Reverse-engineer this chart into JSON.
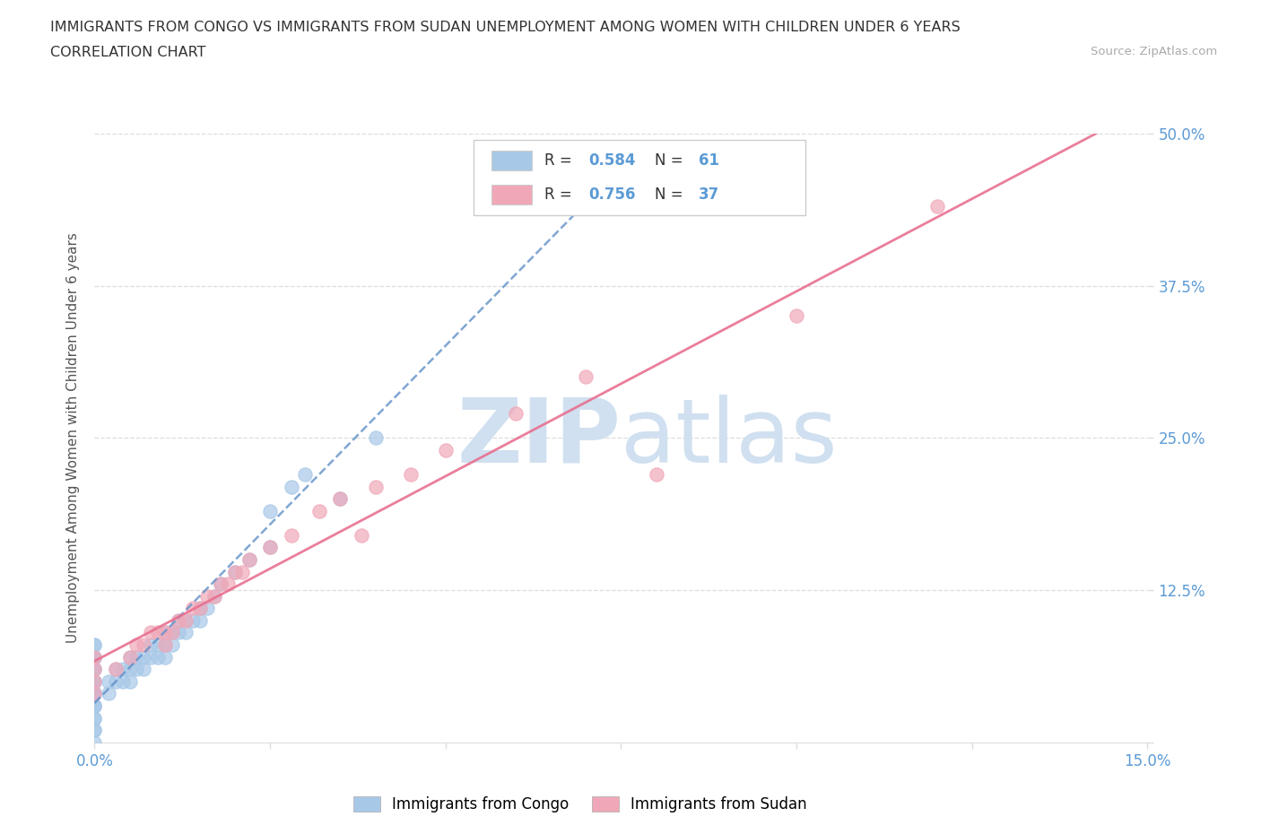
{
  "title_line1": "IMMIGRANTS FROM CONGO VS IMMIGRANTS FROM SUDAN UNEMPLOYMENT AMONG WOMEN WITH CHILDREN UNDER 6 YEARS",
  "title_line2": "CORRELATION CHART",
  "source_text": "Source: ZipAtlas.com",
  "ylabel": "Unemployment Among Women with Children Under 6 years",
  "xlim": [
    0.0,
    0.15
  ],
  "ylim": [
    0.0,
    0.5
  ],
  "xticks": [
    0.0,
    0.025,
    0.05,
    0.075,
    0.1,
    0.125,
    0.15
  ],
  "xticklabels": [
    "0.0%",
    "",
    "",
    "",
    "",
    "",
    "15.0%"
  ],
  "yticks": [
    0.0,
    0.125,
    0.25,
    0.375,
    0.5
  ],
  "yticklabels": [
    "",
    "12.5%",
    "25.0%",
    "37.5%",
    "50.0%"
  ],
  "congo_color": "#A8C8E8",
  "sudan_color": "#F0A8B8",
  "congo_line_color": "#6090C8",
  "sudan_line_color": "#E87090",
  "congo_R": 0.584,
  "congo_N": 61,
  "sudan_R": 0.756,
  "sudan_N": 37,
  "watermark_zip": "ZIP",
  "watermark_atlas": "atlas",
  "watermark_color": "#D0E0F0",
  "grid_color": "#DDDDDD",
  "tick_color": "#5B9BD5",
  "legend_text_color": "#333333",
  "congo_scatter_x": [
    0.0,
    0.0,
    0.0,
    0.0,
    0.0,
    0.0,
    0.0,
    0.0,
    0.0,
    0.0,
    0.0,
    0.0,
    0.0,
    0.0,
    0.0,
    0.0,
    0.0,
    0.0,
    0.0,
    0.0,
    0.002,
    0.002,
    0.003,
    0.003,
    0.004,
    0.004,
    0.005,
    0.005,
    0.005,
    0.006,
    0.006,
    0.007,
    0.007,
    0.008,
    0.008,
    0.009,
    0.009,
    0.01,
    0.01,
    0.01,
    0.011,
    0.011,
    0.012,
    0.012,
    0.013,
    0.013,
    0.014,
    0.015,
    0.015,
    0.016,
    0.017,
    0.018,
    0.02,
    0.022,
    0.025,
    0.025,
    0.028,
    0.03,
    0.035,
    0.04,
    0.055
  ],
  "congo_scatter_y": [
    0.0,
    0.01,
    0.01,
    0.02,
    0.02,
    0.03,
    0.03,
    0.03,
    0.04,
    0.04,
    0.04,
    0.05,
    0.05,
    0.05,
    0.06,
    0.06,
    0.07,
    0.07,
    0.08,
    0.08,
    0.04,
    0.05,
    0.05,
    0.06,
    0.05,
    0.06,
    0.05,
    0.06,
    0.07,
    0.06,
    0.07,
    0.06,
    0.07,
    0.07,
    0.08,
    0.07,
    0.08,
    0.07,
    0.08,
    0.09,
    0.08,
    0.09,
    0.09,
    0.1,
    0.09,
    0.1,
    0.1,
    0.1,
    0.11,
    0.11,
    0.12,
    0.13,
    0.14,
    0.15,
    0.16,
    0.19,
    0.21,
    0.22,
    0.2,
    0.25,
    0.44
  ],
  "sudan_scatter_x": [
    0.0,
    0.0,
    0.0,
    0.0,
    0.003,
    0.005,
    0.006,
    0.007,
    0.008,
    0.009,
    0.01,
    0.01,
    0.011,
    0.012,
    0.013,
    0.014,
    0.015,
    0.016,
    0.017,
    0.018,
    0.019,
    0.02,
    0.021,
    0.022,
    0.025,
    0.028,
    0.032,
    0.035,
    0.038,
    0.04,
    0.045,
    0.05,
    0.06,
    0.07,
    0.08,
    0.1,
    0.12
  ],
  "sudan_scatter_y": [
    0.04,
    0.05,
    0.06,
    0.07,
    0.06,
    0.07,
    0.08,
    0.08,
    0.09,
    0.09,
    0.08,
    0.09,
    0.09,
    0.1,
    0.1,
    0.11,
    0.11,
    0.12,
    0.12,
    0.13,
    0.13,
    0.14,
    0.14,
    0.15,
    0.16,
    0.17,
    0.19,
    0.2,
    0.17,
    0.21,
    0.22,
    0.24,
    0.27,
    0.3,
    0.22,
    0.35,
    0.44
  ]
}
